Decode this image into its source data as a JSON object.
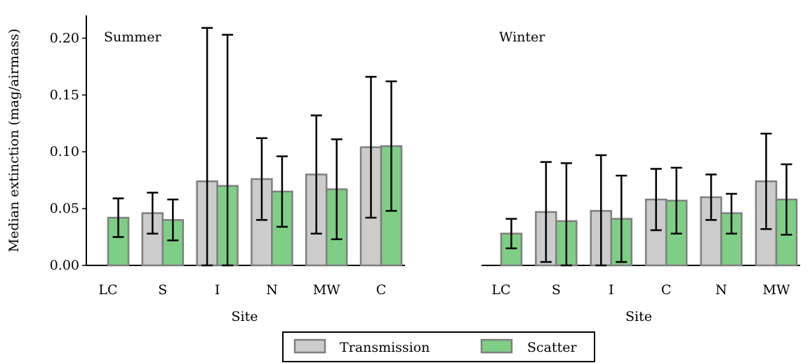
{
  "chart_data": [
    {
      "type": "bar",
      "title": "Summer",
      "xlabel": "Site",
      "ylabel": "Median extinction (mag/airmass)",
      "ylim": [
        0,
        0.22
      ],
      "yticks": [
        "0.00",
        "0.05",
        "0.10",
        "0.15",
        "0.20"
      ],
      "categories": [
        "LC",
        "S",
        "I",
        "N",
        "MW",
        "C"
      ],
      "series": [
        {
          "name": "Transmission",
          "values": [
            null,
            0.046,
            0.074,
            0.076,
            0.08,
            0.104
          ],
          "err_low": [
            null,
            0.028,
            0.0,
            0.04,
            0.028,
            0.042
          ],
          "err_high": [
            null,
            0.064,
            0.209,
            0.112,
            0.132,
            0.166
          ]
        },
        {
          "name": "Scatter",
          "values": [
            0.042,
            0.04,
            0.07,
            0.065,
            0.067,
            0.105
          ],
          "err_low": [
            0.025,
            0.022,
            0.0,
            0.034,
            0.023,
            0.048
          ],
          "err_high": [
            0.059,
            0.058,
            0.203,
            0.096,
            0.111,
            0.162
          ]
        }
      ]
    },
    {
      "type": "bar",
      "title": "Winter",
      "xlabel": "Site",
      "ylabel": "",
      "ylim": [
        0,
        0.22
      ],
      "categories": [
        "LC",
        "S",
        "I",
        "C",
        "N",
        "MW"
      ],
      "series": [
        {
          "name": "Transmission",
          "values": [
            null,
            0.047,
            0.048,
            0.058,
            0.06,
            0.074
          ],
          "err_low": [
            null,
            0.003,
            0.0,
            0.031,
            0.04,
            0.032
          ],
          "err_high": [
            null,
            0.091,
            0.097,
            0.085,
            0.08,
            0.116
          ]
        },
        {
          "name": "Scatter",
          "values": [
            0.028,
            0.039,
            0.041,
            0.057,
            0.046,
            0.058
          ],
          "err_low": [
            0.015,
            0.0,
            0.003,
            0.028,
            0.028,
            0.027
          ],
          "err_high": [
            0.041,
            0.09,
            0.079,
            0.086,
            0.063,
            0.089
          ]
        }
      ]
    }
  ],
  "legend": {
    "placement": "bottom-center",
    "items": [
      {
        "label": "Transmission",
        "fill": "#cccccc",
        "stroke": "#7f7f7f"
      },
      {
        "label": "Scatter",
        "fill": "#7fce86",
        "stroke": "#7f7f7f"
      }
    ]
  },
  "colors": {
    "transmission": "#cccccc",
    "scatter": "#7fce86",
    "bar_edge": "#7f7f7f",
    "errorbar": "#000000"
  }
}
